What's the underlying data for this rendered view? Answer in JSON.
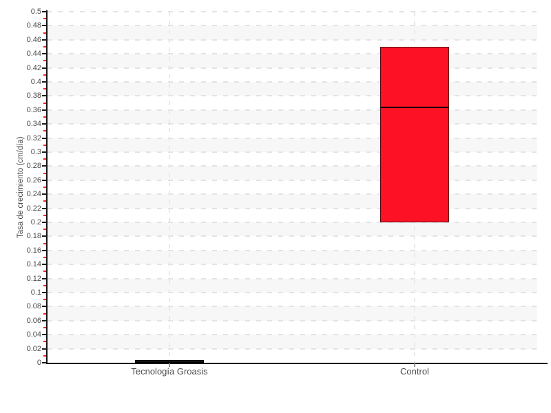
{
  "chart_data": {
    "type": "box",
    "title": "",
    "xlabel": "",
    "ylabel": "Tasa de crecimiento (cm/día)",
    "categories": [
      "Tecnología Groasis",
      "Control"
    ],
    "series": [
      {
        "name": "Tecnología Groasis",
        "low": 0,
        "mid": 0.002,
        "high": 0.004,
        "fill": "#111111",
        "border": "#000000"
      },
      {
        "name": "Control",
        "low": 0.2,
        "mid": 0.364,
        "high": 0.45,
        "fill": "#fd1124",
        "border": "#49080d"
      }
    ],
    "ylim": [
      0,
      0.5
    ],
    "ytick_step": 0.02,
    "ytick_labels": [
      "0",
      "0.02",
      "0.04",
      "0.06",
      "0.08",
      "0.1",
      "0.12",
      "0.14",
      "0.16",
      "0.18",
      "0.2",
      "0.22",
      "0.24",
      "0.26",
      "0.28",
      "0.3",
      "0.32",
      "0.34",
      "0.36",
      "0.38",
      "0.4",
      "0.42",
      "0.44",
      "0.46",
      "0.48",
      "0.5"
    ],
    "grid": {
      "horizontal": "dashed line at every 0.02",
      "vertical": "dashed line at each category center",
      "bands": "alternating shaded rows every 0.02"
    },
    "legend": "none"
  },
  "colors": {
    "background": "#ffffff",
    "band": "#f7f7f7",
    "h_gridline": "#e3e3e3",
    "v_gridline": "#eaeaea",
    "axis": "#141414",
    "tick_label": "#4a4a4a",
    "major_tick": "#1a1a1a",
    "minor_tick": "#ff1f0f",
    "category_label": "#4a4a4a",
    "box_red": "#fd1124",
    "box_black": "#111111"
  }
}
